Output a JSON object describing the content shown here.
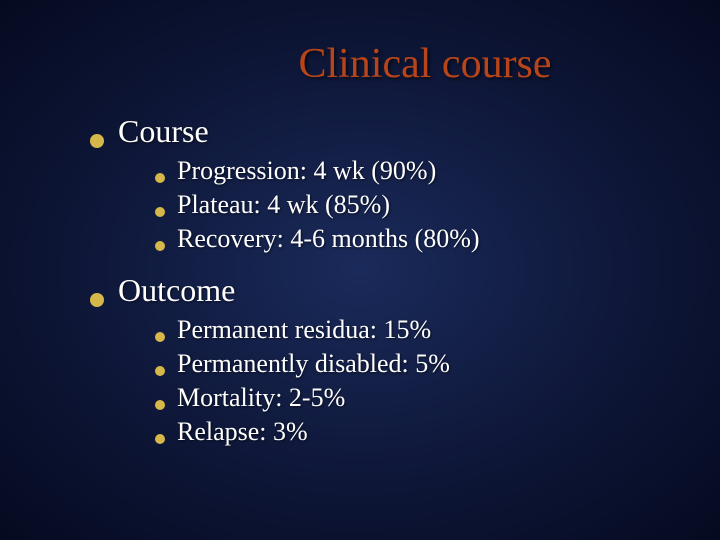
{
  "title": "Clinical course",
  "colors": {
    "title_color": "#b8451a",
    "bullet_color": "#d6b84a",
    "text_color": "#ffffff",
    "background_inner": "#1a2a5a",
    "background_outer": "#050a20"
  },
  "typography": {
    "title_fontsize": 42,
    "level1_fontsize": 32,
    "level2_fontsize": 26,
    "font_family": "Times New Roman"
  },
  "sections": [
    {
      "label": "Course",
      "items": [
        "Progression: 4 wk (90%)",
        "Plateau: 4 wk (85%)",
        "Recovery: 4-6 months (80%)"
      ]
    },
    {
      "label": "Outcome",
      "items": [
        "Permanent residua: 15%",
        "Permanently disabled: 5%",
        "Mortality: 2-5%",
        "Relapse: 3%"
      ]
    }
  ]
}
